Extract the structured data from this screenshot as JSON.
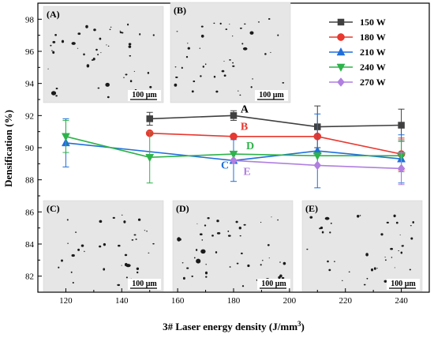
{
  "chart_data": {
    "type": "line",
    "title": "",
    "xlabel": "3# Laser energy density (J/mm",
    "xlabel_sup": "3",
    "xlabel_end": ")",
    "ylabel": "Densification (%)",
    "xlim": [
      110,
      250
    ],
    "ylim": [
      81,
      99
    ],
    "x_ticks": [
      "120",
      "140",
      "160",
      "180",
      "200",
      "220",
      "240"
    ],
    "y_ticks": [
      "82",
      "84",
      "86",
      "88",
      "90",
      "92",
      "94",
      "96",
      "98"
    ],
    "x_tick_values": [
      120,
      140,
      160,
      180,
      200,
      220,
      240
    ],
    "y_tick_values": [
      82,
      84,
      86,
      88,
      90,
      92,
      94,
      96,
      98
    ],
    "legend_position": "top-right",
    "series": [
      {
        "name": "150 W",
        "color": "#404040",
        "marker": "square",
        "x": [
          150,
          180,
          210,
          240
        ],
        "y": [
          91.8,
          92.0,
          91.3,
          91.4
        ],
        "err": [
          0.4,
          0.3,
          1.3,
          1.0
        ]
      },
      {
        "name": "180 W",
        "color": "#e8382f",
        "marker": "circle",
        "x": [
          150,
          180,
          210,
          240
        ],
        "y": [
          90.9,
          90.7,
          90.7,
          89.6
        ],
        "err": [
          0.0,
          0.0,
          0.0,
          1.0
        ]
      },
      {
        "name": "210 W",
        "color": "#1f6fdb",
        "marker": "triangle-up",
        "x": [
          120,
          180,
          210,
          240
        ],
        "y": [
          90.3,
          89.2,
          89.8,
          89.3
        ],
        "err": [
          1.5,
          1.3,
          2.3,
          1.5
        ]
      },
      {
        "name": "240 W",
        "color": "#2db34a",
        "marker": "triangle-down",
        "x": [
          120,
          150,
          180,
          210,
          240
        ],
        "y": [
          90.7,
          89.4,
          89.6,
          89.5,
          89.5
        ],
        "err": [
          1.0,
          1.6,
          0.0,
          0.0,
          1.0
        ]
      },
      {
        "name": "270 W",
        "color": "#b07fe0",
        "marker": "diamond",
        "x": [
          180,
          210,
          240
        ],
        "y": [
          89.2,
          88.9,
          88.7
        ],
        "err": [
          0.0,
          0.0,
          1.0
        ]
      }
    ],
    "annotations": [
      {
        "text": "A",
        "x": 182.5,
        "y": 92.2,
        "color": "#000000"
      },
      {
        "text": "B",
        "x": 182.5,
        "y": 91.1,
        "color": "#e8382f"
      },
      {
        "text": "D",
        "x": 184.5,
        "y": 89.9,
        "color": "#2db34a"
      },
      {
        "text": "C",
        "x": 175.5,
        "y": 88.7,
        "color": "#1f6fdb"
      },
      {
        "text": "E",
        "x": 183.5,
        "y": 88.3,
        "color": "#b07fe0"
      }
    ],
    "micrographs": [
      {
        "label": "(A)",
        "scale": "100 μm"
      },
      {
        "label": "(B)",
        "scale": "100 μm"
      },
      {
        "label": "(C)",
        "scale": "100 μm"
      },
      {
        "label": "(D)",
        "scale": "100 μm"
      },
      {
        "label": "(E)",
        "scale": "100 μm"
      }
    ]
  }
}
